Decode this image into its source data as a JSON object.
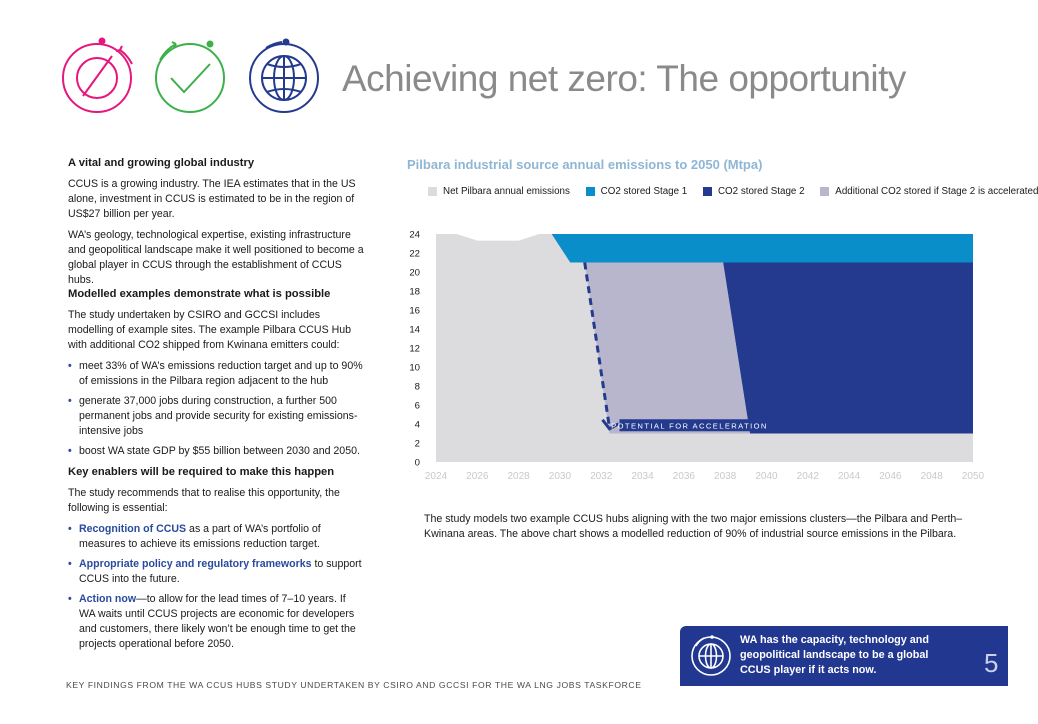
{
  "page": {
    "title": "Achieving net zero: The opportunity",
    "footer": "KEY FINDINGS FROM THE WA CCUS HUBS STUDY UNDERTAKEN BY CSIRO AND GCCSI FOR THE WA LNG JOBS TASKFORCE",
    "page_number": "5",
    "colors": {
      "pink": "#e5177e",
      "green": "#3db04b",
      "navy": "#233a8f",
      "teal": "#0a8ec9",
      "light": "#dcdcde",
      "lav": "#b7b6cc"
    }
  },
  "left": {
    "s1_heading": "A vital and growing global industry",
    "s1_p1": "CCUS is a growing industry. The IEA estimates that in the US alone, investment in CCUS is estimated to be in the region of US$27 billion per year.",
    "s1_p2": "WA’s geology, technological expertise, existing infrastructure and geopolitical landscape make it well positioned to become a global player in CCUS through the establishment of CCUS hubs.",
    "s2_heading": "Modelled examples demonstrate what is possible",
    "s2_p1": "The study undertaken by CSIRO and GCCSI includes modelling of example sites. The example Pilbara CCUS Hub with additional CO2 shipped from Kwinana emitters could:",
    "s2_b1": "meet 33% of WA’s emissions reduction target and up to 90% of emissions in the Pilbara region adjacent to the hub",
    "s2_b2": "generate 37,000 jobs during construction, a further 500 permanent jobs and provide security for existing emissions-intensive jobs",
    "s2_b3": "boost WA state GDP by $55 billion between 2030 and 2050.",
    "s3_heading": "Key enablers will be required to make this happen",
    "s3_p1": "The study recommends that to realise this opportunity, the following is essential:",
    "s3_b1_kw": "Recognition of CCUS",
    "s3_b1_rest": " as a part of WA’s portfolio of measures to achieve its emissions reduction target.",
    "s3_b2_kw": "Appropriate policy and regulatory frameworks",
    "s3_b2_rest": " to support CCUS into the future.",
    "s3_b3_kw": "Action now",
    "s3_b3_rest": "—to allow for the lead times of 7–10 years. If WA waits until CCUS projects are economic for developers and customers, there likely won’t be enough time to get the projects operational before 2050."
  },
  "caption": "The study models two example CCUS hubs aligning with the two major emissions clusters—the Pilbara and Perth–Kwinana areas. The above chart shows a modelled reduction of 90% of industrial source emissions in the Pilbara.",
  "callout": {
    "text": "WA has the capacity, technology and geopolitical landscape to be a global CCUS player if it acts now.",
    "icon": "globe-icon"
  },
  "chart_data": {
    "type": "area",
    "title": "Pilbara industrial source annual emissions to 2050 (Mtpa)",
    "x_range": [
      2024,
      2050
    ],
    "x_ticks": [
      "2024",
      "2026",
      "2028",
      "2030",
      "2032",
      "2034",
      "2036",
      "2038",
      "2040",
      "2042",
      "2044",
      "2046",
      "2048",
      "2050"
    ],
    "y_ticks": [
      "0",
      "2",
      "4",
      "6",
      "8",
      "10",
      "12",
      "14",
      "16",
      "18",
      "20",
      "22",
      "24"
    ],
    "ylim": [
      0,
      24
    ],
    "series": [
      {
        "name": "Net Pilbara annual emissions",
        "color": "#dcdcde",
        "points": [
          [
            2024,
            24
          ],
          [
            2025,
            24
          ],
          [
            2026,
            23.3
          ],
          [
            2027,
            23.3
          ],
          [
            2028,
            23.3
          ],
          [
            2029,
            24
          ],
          [
            2030,
            24
          ],
          [
            2030.2,
            24
          ],
          [
            2050,
            24
          ]
        ]
      },
      {
        "name": "CO2 stored Stage 1",
        "color": "#0a8ec9",
        "points": [
          [
            2029.6,
            24
          ],
          [
            2030.5,
            21
          ],
          [
            2050,
            21
          ],
          [
            2050,
            24
          ]
        ]
      },
      {
        "name": "CO2 stored Stage 2",
        "color": "#233a8f",
        "points": [
          [
            2037.9,
            21
          ],
          [
            2039.2,
            3
          ],
          [
            2050,
            3
          ],
          [
            2050,
            21
          ]
        ]
      },
      {
        "name": "Additional CO2 stored if Stage 2 is accelerated",
        "color": "#b7b6cc",
        "points": [
          [
            2031.2,
            21
          ],
          [
            2037.9,
            21
          ],
          [
            2039.2,
            3
          ],
          [
            2032.4,
            3
          ]
        ]
      }
    ],
    "annotation": {
      "text": "POTENTIAL FOR ACCELERATION",
      "from": [
        2031.2,
        21
      ],
      "to": [
        2032.4,
        3.6
      ]
    }
  }
}
